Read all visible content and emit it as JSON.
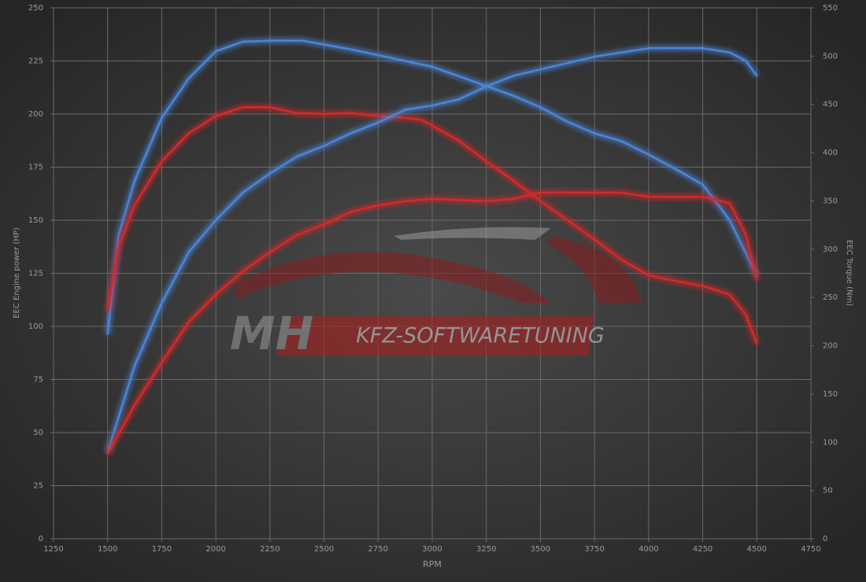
{
  "chart_data": {
    "type": "line",
    "x_label": "RPM",
    "y_label": "EEC Engine power (HP)",
    "y2_label": "EEC Torque (Nm)",
    "watermark": [
      "MH",
      "KFZ-SOFTWARETUNING"
    ],
    "xlim": [
      1250,
      4750
    ],
    "xticks": [
      1250,
      1500,
      1750,
      2000,
      2250,
      2500,
      2750,
      3000,
      3250,
      3500,
      3750,
      4000,
      4250,
      4500,
      4750
    ],
    "ylim": [
      0,
      250
    ],
    "yticks": [
      0,
      25,
      50,
      75,
      100,
      125,
      150,
      175,
      200,
      225,
      250
    ],
    "y2lim": [
      0,
      550
    ],
    "y2ticks": [
      0,
      50,
      100,
      150,
      200,
      250,
      300,
      350,
      400,
      450,
      500,
      550
    ],
    "grid": true,
    "series": [
      {
        "color": "#4a86d8",
        "axis": "y2",
        "x": [
          1500,
          1550,
          1625,
          1750,
          1875,
          2000,
          2125,
          2250,
          2400,
          2500,
          2625,
          2750,
          2875,
          3000,
          3125,
          3250,
          3375,
          3500,
          3625,
          3750,
          3875,
          4000,
          4125,
          4250,
          4375,
          4500
        ],
        "values": [
          212,
          314,
          371,
          436,
          477,
          505,
          515,
          516,
          516,
          512,
          507,
          501,
          495,
          489,
          479,
          469,
          459,
          447,
          432,
          420,
          412,
          398,
          383,
          367,
          330,
          273
        ]
      },
      {
        "color": "#d42a2a",
        "axis": "y2",
        "x": [
          1500,
          1550,
          1625,
          1750,
          1875,
          2000,
          2125,
          2250,
          2375,
          2500,
          2625,
          2750,
          2875,
          2950,
          3000,
          3125,
          3250,
          3375,
          3500,
          3625,
          3750,
          3875,
          4000,
          4125,
          4250,
          4375,
          4450,
          4500
        ],
        "values": [
          236,
          302,
          346,
          391,
          420,
          438,
          447,
          447,
          441,
          440,
          441,
          438,
          436,
          434,
          428,
          412,
          391,
          371,
          350,
          330,
          310,
          289,
          273,
          267,
          262,
          253,
          232,
          202
        ]
      },
      {
        "color": "#4a86d8",
        "x": [
          1500,
          1625,
          1750,
          1875,
          2000,
          2125,
          2250,
          2375,
          2500,
          2625,
          2750,
          2875,
          3000,
          3125,
          3250,
          3375,
          3500,
          3625,
          3750,
          3875,
          4000,
          4250,
          4375,
          4450,
          4500
        ],
        "values": [
          40.7,
          81.5,
          111,
          135,
          150,
          163,
          172,
          180,
          185,
          191,
          196,
          202,
          204,
          207,
          213,
          218,
          221,
          224,
          227,
          229,
          231,
          231,
          229,
          225,
          218
        ]
      },
      {
        "color": "#d42a2a",
        "x": [
          1500,
          1625,
          1750,
          1875,
          2000,
          2125,
          2250,
          2375,
          2500,
          2625,
          2750,
          2875,
          3000,
          3250,
          3375,
          3500,
          3625,
          3875,
          4000,
          4250,
          4375,
          4450,
          4500
        ],
        "values": [
          40,
          63,
          83,
          102,
          115,
          126,
          135,
          143,
          148,
          154,
          157,
          159,
          160,
          159,
          160,
          163,
          163,
          163,
          161,
          161,
          158,
          143,
          122
        ]
      }
    ]
  }
}
